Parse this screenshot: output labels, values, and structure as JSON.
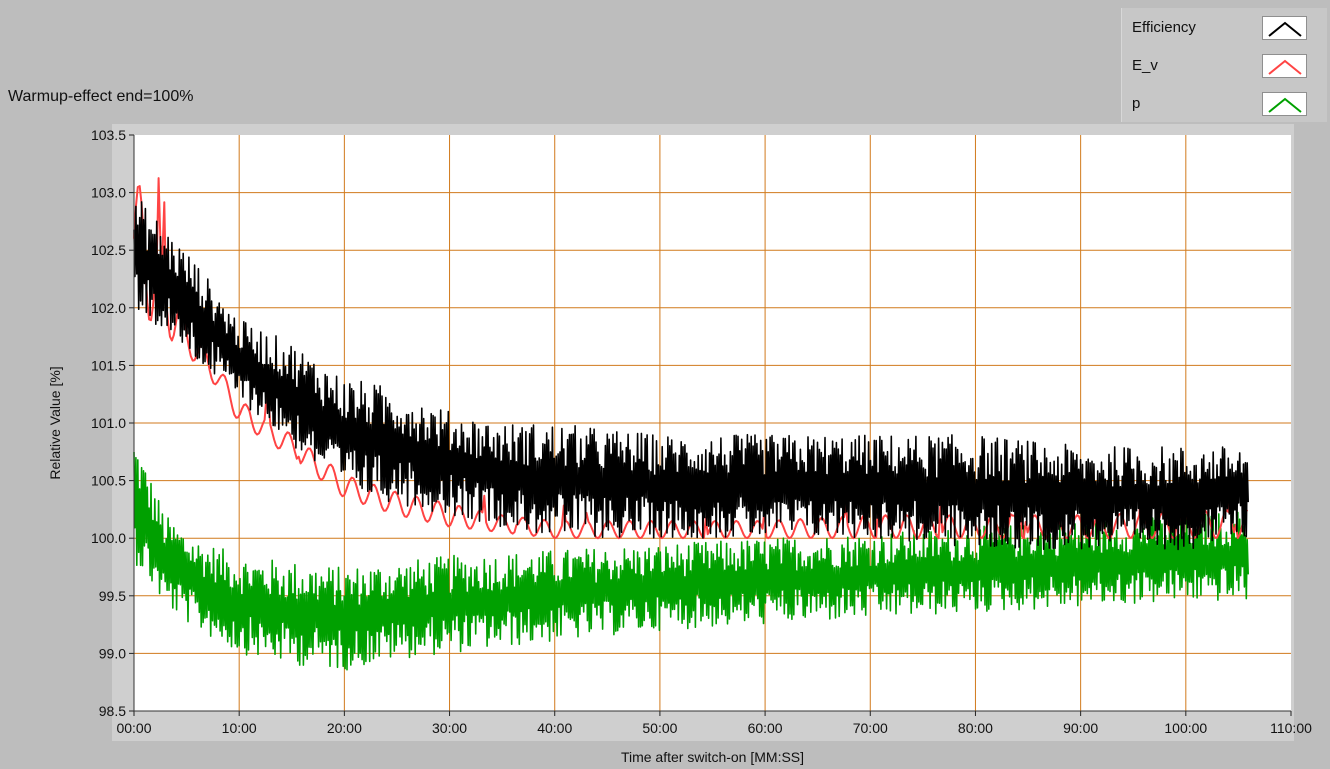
{
  "panel": {
    "title": "Warmup-effect end=100%"
  },
  "legend": {
    "items": [
      {
        "label": "Efficiency",
        "color": "#000000"
      },
      {
        "label": "E_v",
        "color": "#ff4444"
      },
      {
        "label": "p",
        "color": "#00a000"
      }
    ]
  },
  "chart_data": {
    "type": "line",
    "xlabel": "Time after switch-on [MM:SS]",
    "ylabel": "Relative Value [%]",
    "xlim_minutes": [
      0,
      110
    ],
    "ylim": [
      98.5,
      103.5
    ],
    "x_ticks": [
      "00:00",
      "10:00",
      "20:00",
      "30:00",
      "40:00",
      "50:00",
      "60:00",
      "70:00",
      "80:00",
      "90:00",
      "100:00",
      "110:00"
    ],
    "y_ticks": [
      "98.5",
      "99.0",
      "99.5",
      "100.0",
      "100.5",
      "101.0",
      "101.5",
      "102.0",
      "102.5",
      "103.0",
      "103.5"
    ],
    "grid": true,
    "grid_color": "#d17a1c",
    "plot_background": "#ffffff",
    "x_data_end_minutes": 106,
    "series": [
      {
        "name": "Efficiency",
        "color": "#000000",
        "envelope": [
          {
            "x": 0,
            "low": 102.0,
            "high": 103.0
          },
          {
            "x": 5,
            "low": 101.6,
            "high": 102.5
          },
          {
            "x": 10,
            "low": 101.2,
            "high": 101.9
          },
          {
            "x": 15,
            "low": 100.8,
            "high": 101.7
          },
          {
            "x": 20,
            "low": 100.4,
            "high": 101.4
          },
          {
            "x": 25,
            "low": 100.3,
            "high": 101.3
          },
          {
            "x": 30,
            "low": 100.2,
            "high": 101.1
          },
          {
            "x": 35,
            "low": 100.1,
            "high": 101.0
          },
          {
            "x": 40,
            "low": 100.0,
            "high": 101.0
          },
          {
            "x": 50,
            "low": 100.0,
            "high": 100.9
          },
          {
            "x": 60,
            "low": 100.0,
            "high": 100.9
          },
          {
            "x": 70,
            "low": 100.0,
            "high": 100.9
          },
          {
            "x": 80,
            "low": 99.9,
            "high": 100.9
          },
          {
            "x": 90,
            "low": 99.9,
            "high": 100.8
          },
          {
            "x": 100,
            "low": 99.9,
            "high": 100.8
          },
          {
            "x": 106,
            "low": 100.0,
            "high": 100.8
          }
        ]
      },
      {
        "name": "E_v",
        "color": "#ff4444",
        "envelope": [
          {
            "x": 0,
            "low": 102.0,
            "high": 103.2
          },
          {
            "x": 5,
            "low": 101.6,
            "high": 101.9
          },
          {
            "x": 8,
            "low": 101.3,
            "high": 101.5
          },
          {
            "x": 10,
            "low": 101.0,
            "high": 101.2
          },
          {
            "x": 15,
            "low": 100.7,
            "high": 100.9
          },
          {
            "x": 20,
            "low": 100.35,
            "high": 100.55
          },
          {
            "x": 25,
            "low": 100.2,
            "high": 100.4
          },
          {
            "x": 30,
            "low": 100.1,
            "high": 100.3
          },
          {
            "x": 35,
            "low": 100.05,
            "high": 100.2
          },
          {
            "x": 40,
            "low": 100.0,
            "high": 100.15
          },
          {
            "x": 50,
            "low": 100.0,
            "high": 100.15
          },
          {
            "x": 60,
            "low": 100.0,
            "high": 100.15
          },
          {
            "x": 70,
            "low": 100.0,
            "high": 100.2
          },
          {
            "x": 80,
            "low": 100.0,
            "high": 100.2
          },
          {
            "x": 90,
            "low": 100.0,
            "high": 100.2
          },
          {
            "x": 106,
            "low": 100.0,
            "high": 100.25
          }
        ]
      },
      {
        "name": "p",
        "color": "#00a000",
        "envelope": [
          {
            "x": 0,
            "low": 99.8,
            "high": 100.9
          },
          {
            "x": 3,
            "low": 99.4,
            "high": 100.2
          },
          {
            "x": 6,
            "low": 99.2,
            "high": 100.0
          },
          {
            "x": 10,
            "low": 99.0,
            "high": 99.85
          },
          {
            "x": 15,
            "low": 98.9,
            "high": 99.8
          },
          {
            "x": 20,
            "low": 98.85,
            "high": 99.75
          },
          {
            "x": 25,
            "low": 98.95,
            "high": 99.8
          },
          {
            "x": 30,
            "low": 99.0,
            "high": 99.85
          },
          {
            "x": 40,
            "low": 99.1,
            "high": 99.9
          },
          {
            "x": 50,
            "low": 99.2,
            "high": 99.95
          },
          {
            "x": 60,
            "low": 99.25,
            "high": 100.0
          },
          {
            "x": 70,
            "low": 99.3,
            "high": 100.05
          },
          {
            "x": 80,
            "low": 99.35,
            "high": 100.1
          },
          {
            "x": 90,
            "low": 99.4,
            "high": 100.15
          },
          {
            "x": 100,
            "low": 99.45,
            "high": 100.2
          },
          {
            "x": 106,
            "low": 99.45,
            "high": 100.25
          }
        ]
      }
    ]
  }
}
